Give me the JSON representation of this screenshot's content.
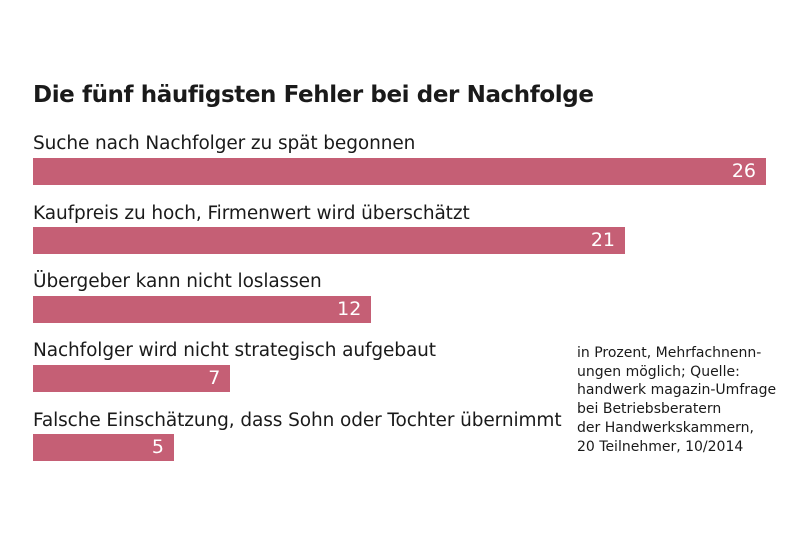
{
  "chart_data": {
    "type": "bar",
    "orientation": "horizontal",
    "title": "Die fünf häufigsten Fehler bei der Nachfolge",
    "categories": [
      "Suche nach Nachfolger zu spät begonnen",
      "Kaufpreis zu hoch, Firmenwert wird überschätzt",
      "Übergeber kann nicht loslassen",
      "Nachfolger wird nicht strategisch aufgebaut",
      "Falsche Einschätzung, dass Sohn oder Tochter übernimmt"
    ],
    "values": [
      26,
      21,
      12,
      7,
      5
    ],
    "value_labels": [
      "26",
      "21",
      "12",
      "7",
      "5"
    ],
    "unit": "Prozent",
    "xlim": [
      0,
      26
    ],
    "grid": false,
    "bar_color": "#c55f75",
    "value_label_color": "#ffffff",
    "annotation": "in Prozent, Mehrfachnenn-\nungen möglich; Quelle:\nhandwerk magazin-Umfrage\nbei Betriebsberatern\nder Handwerkskammern,\n20 Teilnehmer, 10/2014"
  }
}
